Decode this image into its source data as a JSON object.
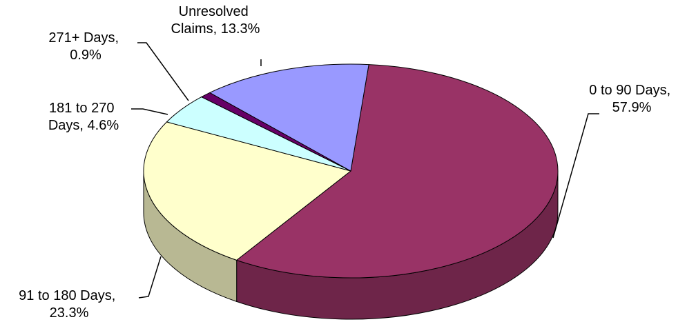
{
  "chart_data": {
    "type": "pie",
    "style": "3d",
    "slices": [
      {
        "line1": "0 to 90 Days,",
        "line2": "57.9%",
        "value": 57.9,
        "color": "#993366"
      },
      {
        "line1": "91 to 180 Days,",
        "line2": "23.3%",
        "value": 23.3,
        "color": "#FFFFCC"
      },
      {
        "line1": "181 to 270",
        "line2": "Days, 4.6%",
        "value": 4.6,
        "color": "#CCFFFF"
      },
      {
        "line1": "271+ Days,",
        "line2": "0.9%",
        "value": 0.9,
        "color": "#660066"
      },
      {
        "line1": "Unresolved",
        "line2": "Claims, 13.3%",
        "value": 13.3,
        "color": "#9999FF"
      }
    ]
  }
}
